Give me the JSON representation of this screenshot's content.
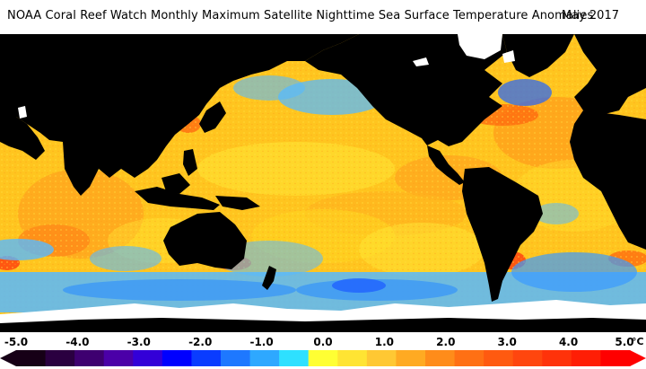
{
  "title": "NOAA Coral Reef Watch Monthly Maximum Satellite Nighttime Sea Surface Temperature Anomalies",
  "date": "May 2017",
  "colorbar": {
    "tick_labels": [
      "-5.0",
      "-4.0",
      "-3.0",
      "-2.0",
      "-1.0",
      "0.0",
      "1.0",
      "2.0",
      "3.0",
      "4.0",
      "5.0"
    ],
    "unit": "°C",
    "min": -5.0,
    "max": 5.0,
    "colors": [
      "#160016",
      "#2a0040",
      "#3e0070",
      "#4b00a8",
      "#3300d8",
      "#0000ff",
      "#0a3cff",
      "#1e78ff",
      "#2ea8ff",
      "#2ee0ff",
      "#ffff33",
      "#ffe433",
      "#ffc833",
      "#ffaa22",
      "#ff8c1a",
      "#ff7014",
      "#ff5a10",
      "#ff460e",
      "#ff320a",
      "#ff1e05",
      "#ff0000"
    ]
  },
  "map_colors": {
    "ocean_base": "#ffc51f",
    "warm": "#ffa81e",
    "hot": "#ff6a10",
    "cool": "#57b9ff",
    "cold": "#1f62ff",
    "neutral": "#ffe533",
    "land": "#000000",
    "ice": "#ffffff"
  }
}
